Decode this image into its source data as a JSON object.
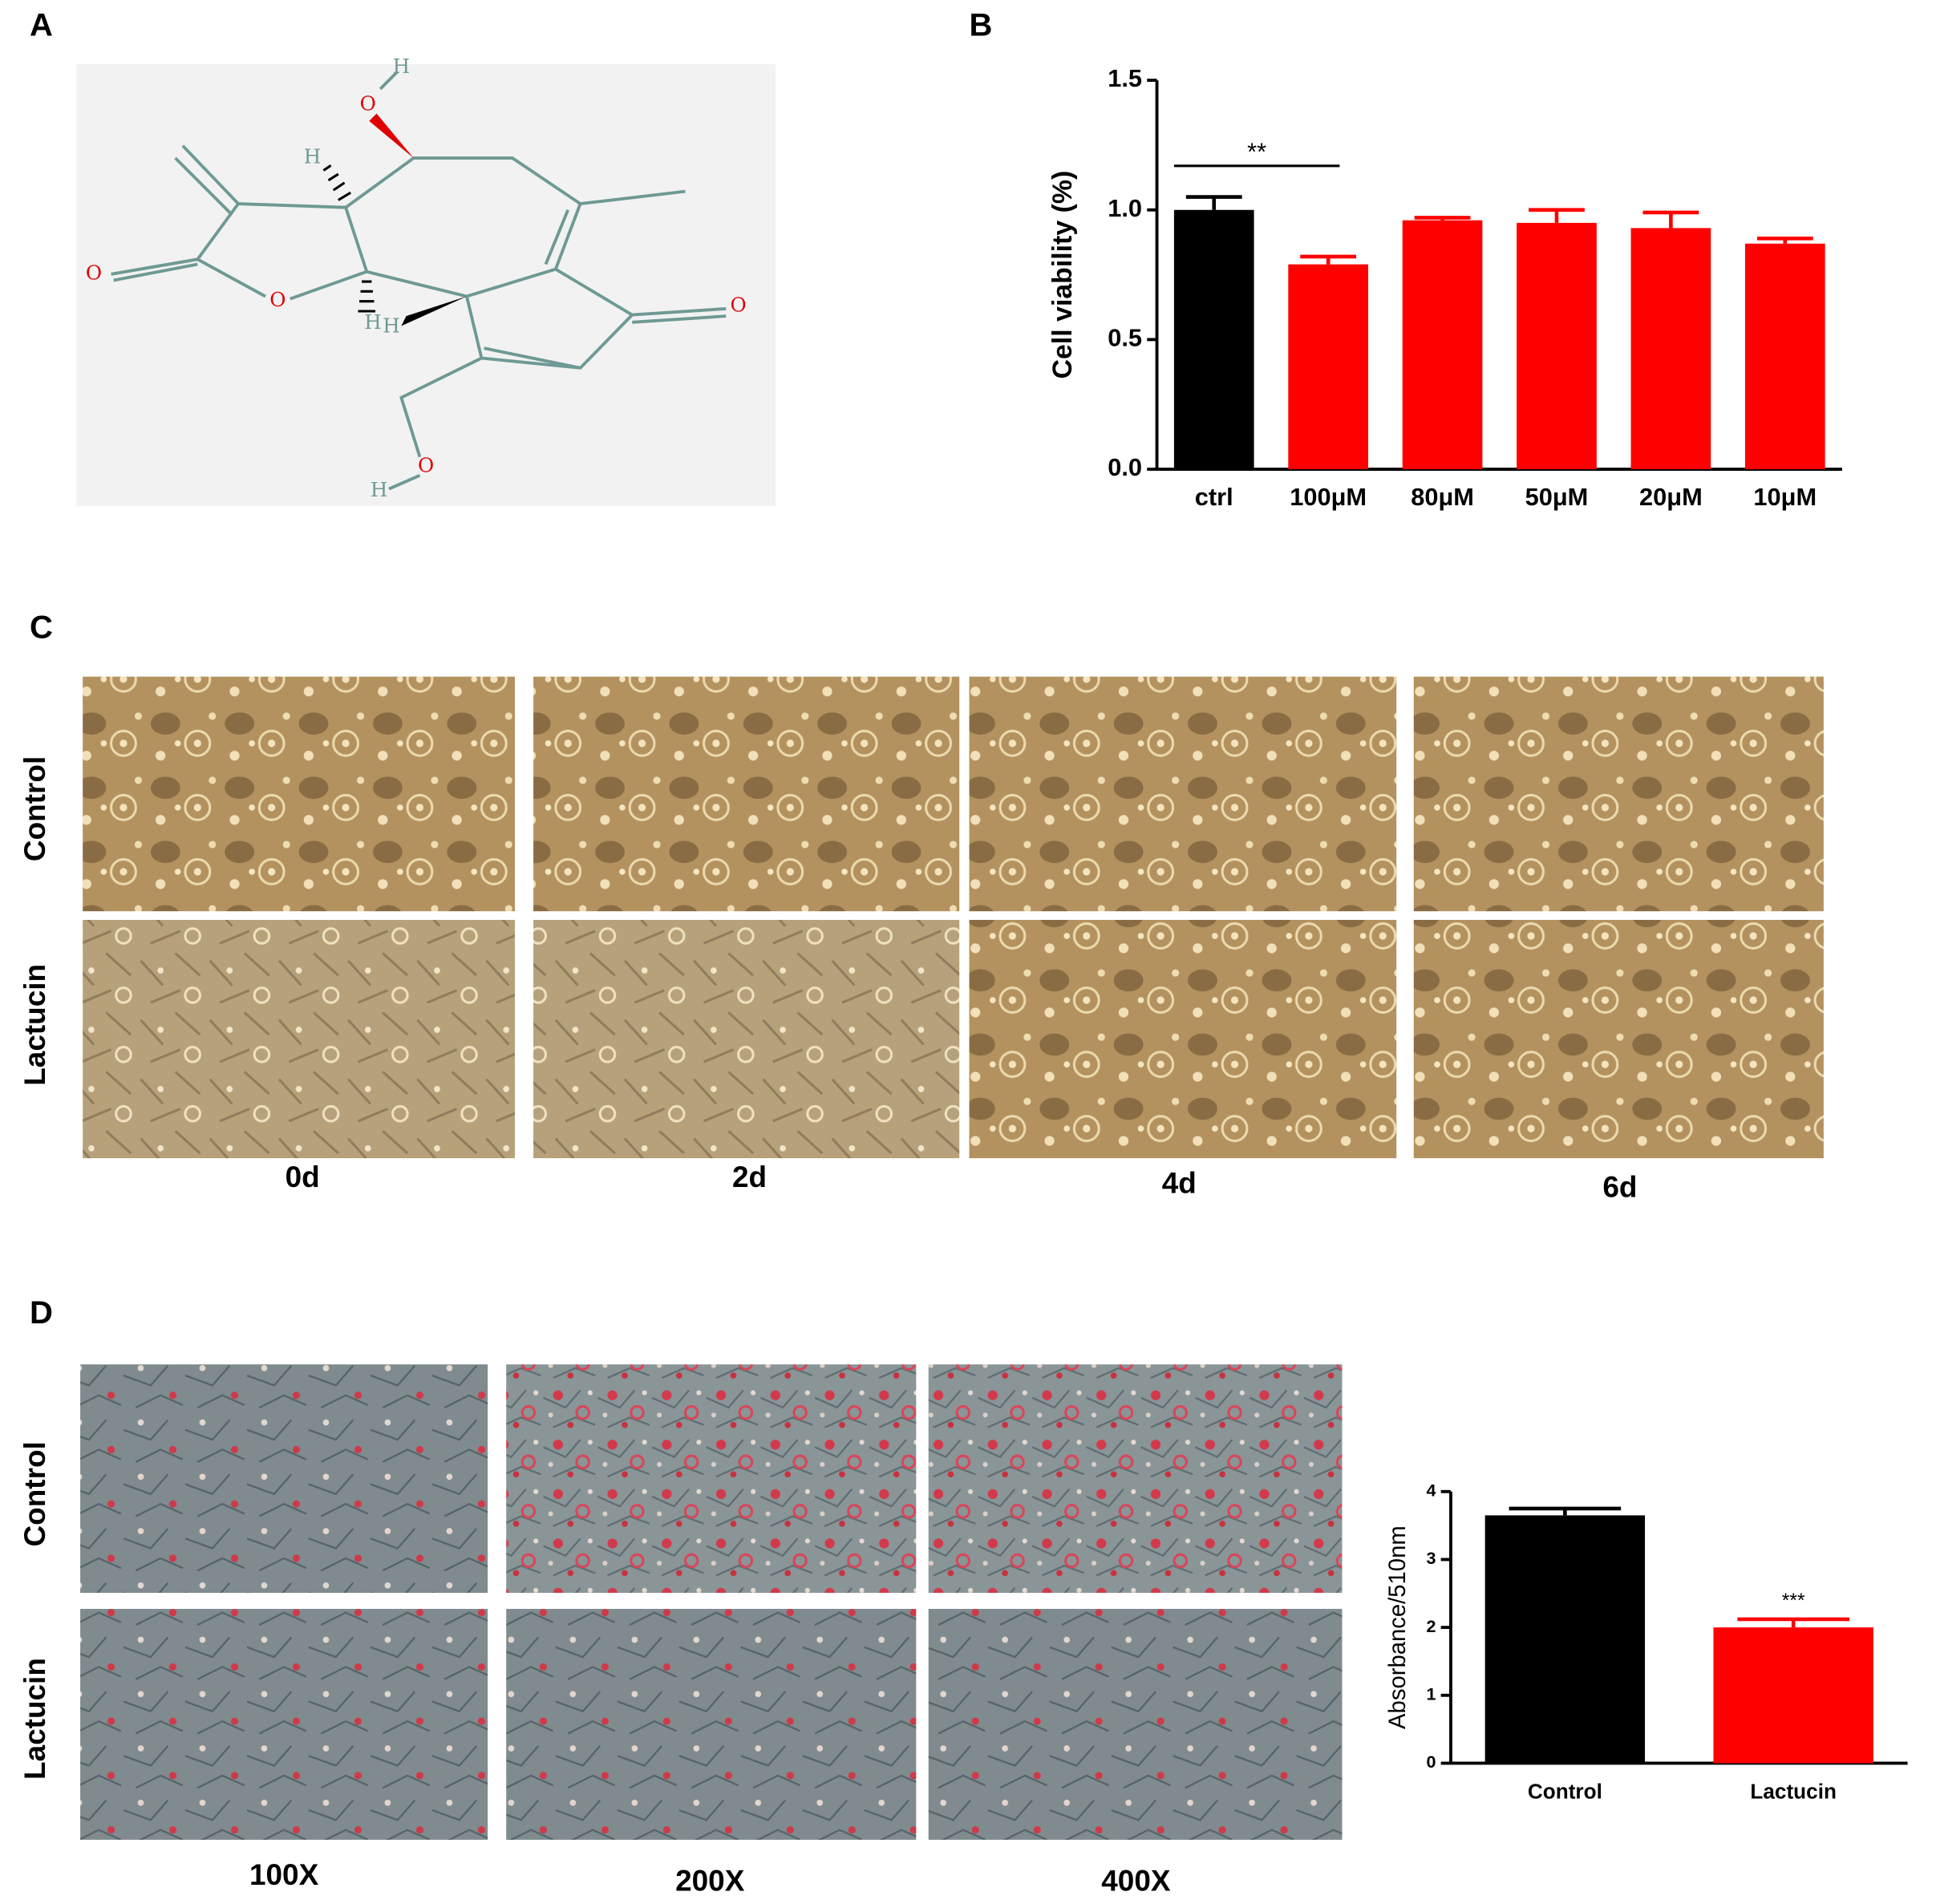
{
  "panels": {
    "a": "A",
    "b": "B",
    "c": "C",
    "d": "D"
  },
  "molecule": {
    "atoms": [
      "H",
      "O",
      "H",
      "O",
      "O",
      "H",
      "H",
      "O",
      "O",
      "H"
    ]
  },
  "panel_c": {
    "rows": [
      "Control",
      "Lactucin"
    ],
    "columns": [
      "0d",
      "2d",
      "4d",
      "6d"
    ]
  },
  "panel_d": {
    "rows": [
      "Control",
      "Lactucin"
    ],
    "columns": [
      "100X",
      "200X",
      "400X"
    ]
  },
  "chart_data": [
    {
      "type": "bar",
      "y_label": "Cell viability (%)",
      "categories": [
        "ctrl",
        "100μM",
        "80μM",
        "50μM",
        "20μM",
        "10μM"
      ],
      "values": [
        1.0,
        0.79,
        0.96,
        0.95,
        0.93,
        0.87
      ],
      "errors": [
        0.05,
        0.03,
        0.01,
        0.05,
        0.06,
        0.02
      ],
      "colors": [
        "#000000",
        "#ff0000",
        "#ff0000",
        "#ff0000",
        "#ff0000",
        "#ff0000"
      ],
      "ylim": [
        0,
        1.5
      ],
      "yticks": [
        {
          "value": 0,
          "label": "0.0"
        },
        {
          "value": 0.5,
          "label": "0.5"
        },
        {
          "value": 1,
          "label": "1.0"
        },
        {
          "value": 1.5,
          "label": "1.5"
        }
      ],
      "annotation": "**"
    },
    {
      "type": "bar",
      "y_label": "Absorbance/510nm",
      "categories": [
        "Control",
        "Lactucin"
      ],
      "values": [
        3.65,
        2.0
      ],
      "errors": [
        0.1,
        0.12
      ],
      "colors": [
        "#000000",
        "#ff0000"
      ],
      "ylim": [
        0,
        4
      ],
      "yticks": [
        0,
        1,
        2,
        3,
        4
      ],
      "annotation": "***"
    }
  ]
}
